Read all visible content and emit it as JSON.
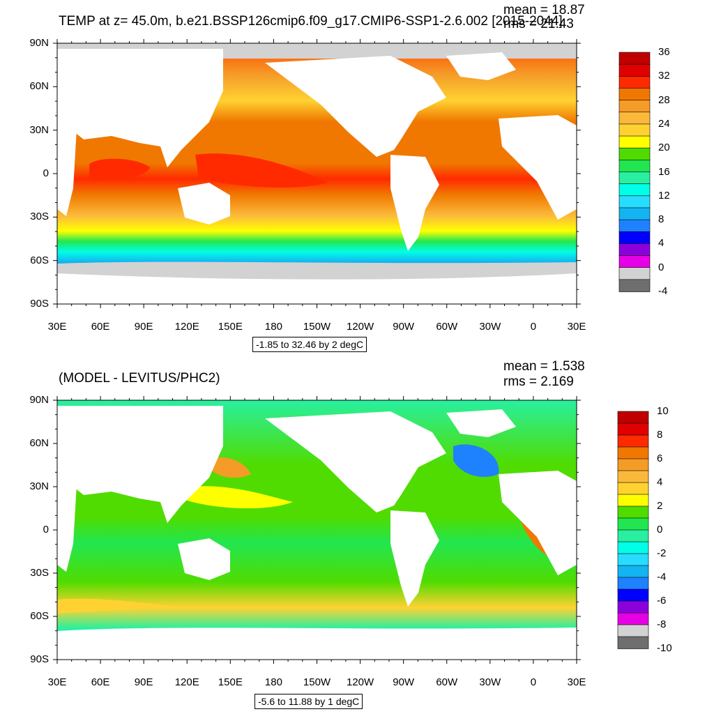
{
  "top_panel": {
    "title": "TEMP at z=  45.0m, b.e21.BSSP126cmip6.f09_g17.CMIP6-SSP1-2.6.002 [2015-2044]",
    "mean_text": "mean = 18.87",
    "rms_text": "rms = 21.43",
    "range_text": "-1.85 to 32.46 by 2 degC",
    "colorbar_labels": [
      "36",
      "32",
      "28",
      "24",
      "20",
      "16",
      "12",
      "8",
      "4",
      "0",
      "-4"
    ],
    "colorbar_colors": [
      "#c00000",
      "#e00000",
      "#ff2a00",
      "#f07800",
      "#f59b28",
      "#fbb93c",
      "#ffd232",
      "#ffff00",
      "#50dc00",
      "#22e650",
      "#28f0a0",
      "#00ffe6",
      "#28dcff",
      "#14b4f0",
      "#1e82ff",
      "#0000ff",
      "#8c00dc",
      "#e600e6",
      "#d2d2d2",
      "#6e6e6e"
    ]
  },
  "bottom_panel": {
    "title": "(MODEL - LEVITUS/PHC2)",
    "mean_text": "mean = 1.538",
    "rms_text": "rms = 2.169",
    "range_text": "-5.6 to 11.88 by 1 degC",
    "colorbar_labels": [
      "10",
      "8",
      "6",
      "4",
      "2",
      "0",
      "-2",
      "-4",
      "-6",
      "-8",
      "-10"
    ],
    "colorbar_colors": [
      "#c00000",
      "#e00000",
      "#ff2a00",
      "#f07800",
      "#f59b28",
      "#fbb93c",
      "#ffd232",
      "#ffff00",
      "#50dc00",
      "#22e650",
      "#28f0a0",
      "#00ffe6",
      "#28dcff",
      "#14b4f0",
      "#1e82ff",
      "#0000ff",
      "#8c00dc",
      "#e600e6",
      "#d2d2d2",
      "#6e6e6e"
    ]
  },
  "axes": {
    "lat_labels": [
      "90N",
      "60N",
      "30N",
      "0",
      "30S",
      "60S",
      "90S"
    ],
    "lon_labels": [
      "30E",
      "60E",
      "90E",
      "120E",
      "150E",
      "180",
      "150W",
      "120W",
      "90W",
      "60W",
      "30W",
      "0",
      "30E"
    ]
  },
  "colors": {
    "land": "#ffffff",
    "ice": "#d2d2d2",
    "frame": "#000000"
  }
}
